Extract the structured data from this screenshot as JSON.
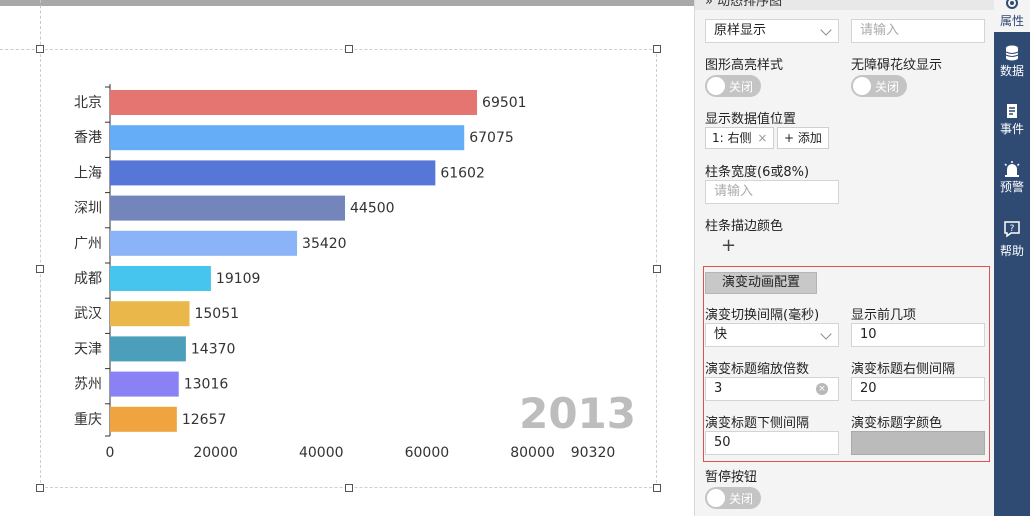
{
  "canvas": {
    "chart_data": {
      "type": "bar",
      "orientation": "horizontal",
      "categories": [
        "北京",
        "香港",
        "上海",
        "深圳",
        "广州",
        "成都",
        "武汉",
        "天津",
        "苏州",
        "重庆"
      ],
      "values": [
        69501,
        67075,
        61602,
        44500,
        35420,
        19109,
        15051,
        14370,
        13016,
        12657
      ],
      "colors": [
        "#e57571",
        "#65aef7",
        "#5677d8",
        "#7485bb",
        "#8bb3f7",
        "#46c6ee",
        "#eab84a",
        "#4b9fba",
        "#8a82f4",
        "#efa43f"
      ],
      "x_ticks": [
        "0",
        "20000",
        "40000",
        "60000",
        "80000",
        "90320"
      ],
      "xlim": [
        0,
        90320
      ],
      "year": "2013",
      "grid": false
    }
  },
  "panel": {
    "header_title": "» 动态排序图",
    "display_mode": {
      "value": "原样显示"
    },
    "input_placeholder_top": "请输入",
    "highlight_style": {
      "label": "图形高亮样式",
      "toggle": "关闭"
    },
    "accessibility": {
      "label": "无障碍花纹显示",
      "toggle": "关闭"
    },
    "data_value_position": {
      "label": "显示数据值位置",
      "tag": "1: 右侧",
      "tag_close": "×",
      "add": "+ 添加"
    },
    "bar_width": {
      "label": "柱条宽度(6或8%)",
      "placeholder": "请输入"
    },
    "bar_stroke_color": {
      "label": "柱条描边颜色",
      "add": "+"
    },
    "animation": {
      "button": "演变动画配置",
      "interval": {
        "label": "演变切换间隔(毫秒)",
        "value": "快"
      },
      "top_n": {
        "label": "显示前几项",
        "value": "10"
      },
      "title_scale": {
        "label": "演变标题缩放倍数",
        "value": "3",
        "clear": "×"
      },
      "title_right": {
        "label": "演变标题右侧间隔",
        "value": "20"
      },
      "title_bottom": {
        "label": "演变标题下侧间隔",
        "value": "50"
      },
      "title_color": {
        "label": "演变标题字颜色",
        "color": "#bbbbbb"
      }
    },
    "pause_button": {
      "label": "暂停按钮",
      "toggle": "关闭"
    }
  },
  "sidenav": {
    "items": [
      {
        "label": "属性",
        "icon": "gear-icon"
      },
      {
        "label": "数据",
        "icon": "database-icon"
      },
      {
        "label": "事件",
        "icon": "event-icon"
      },
      {
        "label": "预警",
        "icon": "alarm-icon"
      },
      {
        "label": "帮助",
        "icon": "help-icon"
      }
    ]
  }
}
